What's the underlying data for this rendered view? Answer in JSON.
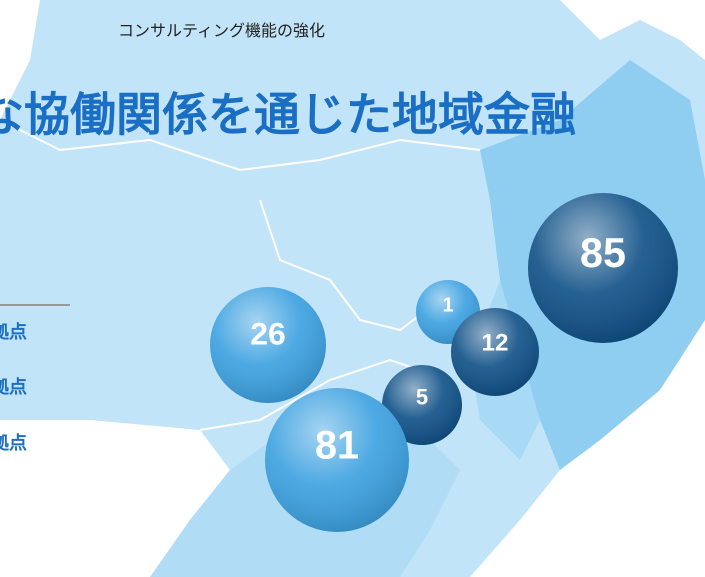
{
  "header": {
    "subtitle": "コンサルティング機能の強化",
    "title": "な協働関係を通じた地域金融"
  },
  "legend": {
    "items": [
      "拠点",
      "拠点",
      "拠点"
    ]
  },
  "bubbles": [
    {
      "value": 85,
      "color": "#0d4f86"
    },
    {
      "value": 1,
      "color": "#3aa0e0"
    },
    {
      "value": 12,
      "color": "#0d4f86"
    },
    {
      "value": 26,
      "color": "#3aa0e0"
    },
    {
      "value": 5,
      "color": "#0d4f86"
    },
    {
      "value": 81,
      "color": "#3aa0e0"
    }
  ]
}
